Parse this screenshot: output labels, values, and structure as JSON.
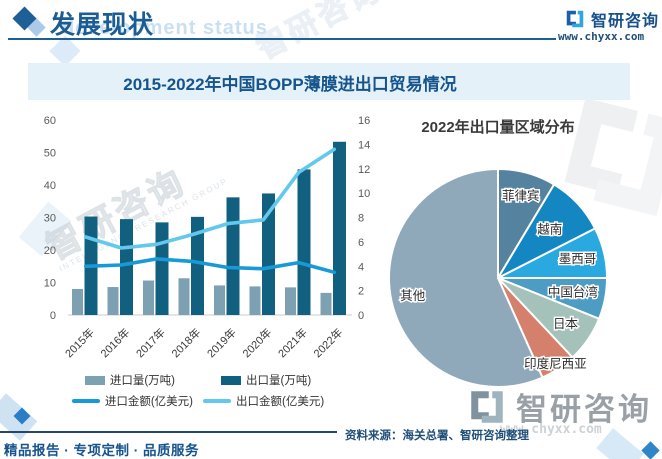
{
  "header": {
    "title": "发展现状",
    "watermark_text": "development status",
    "brand_name": "智研咨询",
    "website": "www.chyxx.com"
  },
  "chart_title": "2015-2022年中国BOPP薄膜进出口贸易情况",
  "chart_data": [
    {
      "type": "bar",
      "subtype": "combo-bar-line",
      "categories": [
        "2015年",
        "2016年",
        "2017年",
        "2018年",
        "2019年",
        "2020年",
        "2021年",
        "2022年"
      ],
      "series": [
        {
          "name": "进口量(万吨)",
          "kind": "bar",
          "axis": "left",
          "color": "#7da0b2",
          "values": [
            8.0,
            8.6,
            10.6,
            11.3,
            9.1,
            8.8,
            8.5,
            6.8
          ]
        },
        {
          "name": "出口量(万吨)",
          "kind": "bar",
          "axis": "left",
          "color": "#11607f",
          "values": [
            30.3,
            29.5,
            28.5,
            30.2,
            36.2,
            37.4,
            44.8,
            53.3
          ]
        },
        {
          "name": "进口金额(亿美元)",
          "kind": "line",
          "axis": "right",
          "color": "#189ad6",
          "values": [
            4.0,
            4.1,
            4.6,
            4.4,
            3.9,
            3.8,
            4.3,
            3.5
          ]
        },
        {
          "name": "出口金额(亿美元)",
          "kind": "line",
          "axis": "right",
          "color": "#62c8ec",
          "values": [
            6.4,
            5.5,
            5.8,
            6.6,
            7.5,
            7.8,
            11.7,
            13.6
          ]
        }
      ],
      "left_axis": {
        "min": 0,
        "max": 60,
        "step": 10
      },
      "right_axis": {
        "min": 0,
        "max": 16,
        "step": 2
      },
      "grid": false,
      "legend_position": "bottom"
    },
    {
      "type": "pie",
      "title": "2022年出口量区域分布",
      "start_angle_deg": 0,
      "direction": "clockwise",
      "slices": [
        {
          "label": "菲律宾",
          "value": 8.6,
          "color": "#55839f"
        },
        {
          "label": "越南",
          "value": 8.9,
          "color": "#1487c3"
        },
        {
          "label": "墨西哥",
          "value": 7.5,
          "color": "#29a9e0"
        },
        {
          "label": "中国台湾",
          "value": 6.1,
          "color": "#4c9cc4"
        },
        {
          "label": "日本",
          "value": 6.9,
          "color": "#a4c2b9"
        },
        {
          "label": "印度尼西亚",
          "value": 5.3,
          "color": "#d5806d"
        },
        {
          "label": "其他",
          "value": 56.7,
          "color": "#90a9ba"
        }
      ]
    }
  ],
  "footer": {
    "source": "资料来源：海关总署、智研咨询整理",
    "tagline": "精品报告 · 专项定制 · 品质服务"
  },
  "watermark": {
    "brand": "智研咨询",
    "subtext": "INTELLIGENCE RESEARCH GROUP",
    "website": "www.chyxx.com"
  },
  "colors": {
    "accent_blue": "#1e5f95",
    "band_bg": "#e5f1f9",
    "axis_text": "#595959",
    "logo_dark": "#1e5fa6",
    "logo_light": "#2ea7df"
  }
}
